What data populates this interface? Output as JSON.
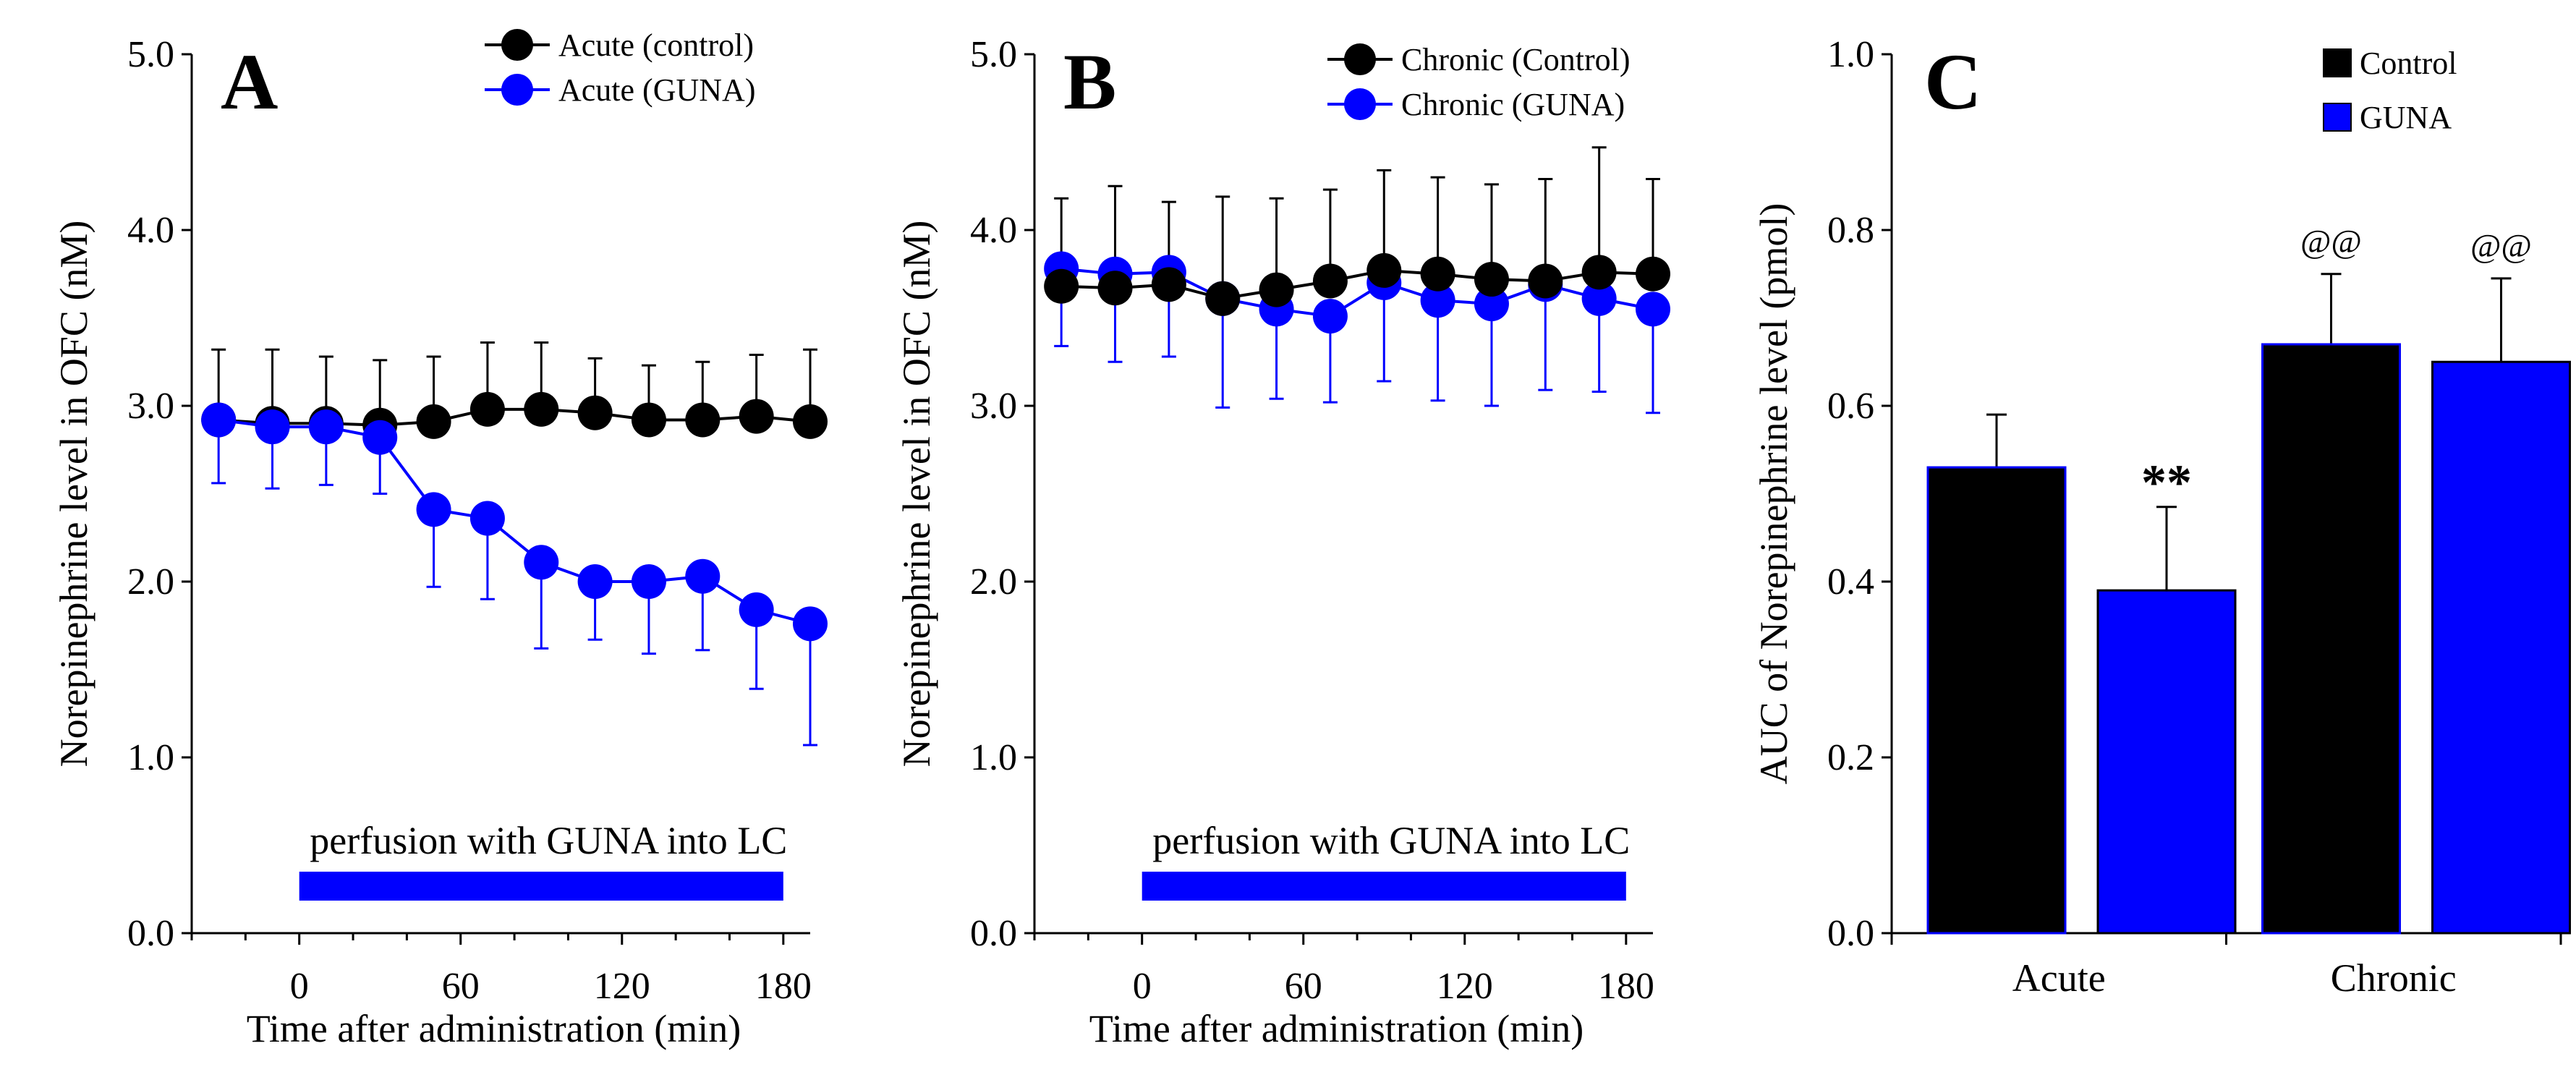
{
  "colors": {
    "control": "#000000",
    "guna": "#0000ff"
  },
  "chart_data": [
    {
      "type": "line",
      "panel": "A",
      "xlabel": "Time after administration (min)",
      "ylabel": "Norepinephrine level in OFC (nM)",
      "ylim": [
        0,
        5
      ],
      "xlim": [
        -40,
        190
      ],
      "y_ticks": [
        "0.0",
        "1.0",
        "2.0",
        "3.0",
        "4.0",
        "5.0"
      ],
      "y_tick_values": [
        0,
        1,
        2,
        3,
        4,
        5
      ],
      "x_ticks": [
        "0",
        "60",
        "120",
        "180"
      ],
      "x_tick_values": [
        0,
        60,
        120,
        180
      ],
      "x": [
        -30,
        -10,
        10,
        30,
        50,
        70,
        90,
        110,
        130,
        150,
        170,
        190
      ],
      "series": [
        {
          "name": "Acute (control)",
          "color": "#000000",
          "values": [
            2.92,
            2.9,
            2.9,
            2.89,
            2.91,
            2.98,
            2.98,
            2.96,
            2.92,
            2.92,
            2.94,
            2.91
          ],
          "errors": [
            0.4,
            0.42,
            0.38,
            0.37,
            0.37,
            0.38,
            0.38,
            0.31,
            0.31,
            0.33,
            0.35,
            0.41
          ]
        },
        {
          "name": "Acute (GUNA)",
          "color": "#0000ff",
          "values": [
            2.92,
            2.88,
            2.88,
            2.82,
            2.41,
            2.36,
            2.11,
            2.0,
            2.0,
            2.03,
            1.84,
            1.76
          ],
          "errors": [
            0.36,
            0.35,
            0.33,
            0.32,
            0.44,
            0.46,
            0.49,
            0.33,
            0.41,
            0.42,
            0.45,
            0.69
          ]
        }
      ],
      "perfusion_label": "perfusion with GUNA into LC",
      "perfusion_range": [
        0,
        180
      ]
    },
    {
      "type": "line",
      "panel": "B",
      "xlabel": "Time after administration (min)",
      "ylabel": "Norepinephrine level in OFC (nM)",
      "ylim": [
        0,
        5
      ],
      "xlim": [
        -40,
        190
      ],
      "y_ticks": [
        "0.0",
        "1.0",
        "2.0",
        "3.0",
        "4.0",
        "5.0"
      ],
      "y_tick_values": [
        0,
        1,
        2,
        3,
        4,
        5
      ],
      "x_ticks": [
        "0",
        "60",
        "120",
        "180"
      ],
      "x_tick_values": [
        0,
        60,
        120,
        180
      ],
      "x": [
        -30,
        -10,
        10,
        30,
        50,
        70,
        90,
        110,
        130,
        150,
        170,
        190
      ],
      "series": [
        {
          "name": "Chronic (Control)",
          "color": "#000000",
          "values": [
            3.68,
            3.67,
            3.69,
            3.61,
            3.66,
            3.71,
            3.77,
            3.75,
            3.72,
            3.71,
            3.76,
            3.75
          ],
          "errors": [
            0.5,
            0.58,
            0.47,
            0.58,
            0.52,
            0.52,
            0.57,
            0.55,
            0.54,
            0.58,
            0.71,
            0.54
          ]
        },
        {
          "name": "Chronic (GUNA)",
          "color": "#0000ff",
          "values": [
            3.78,
            3.75,
            3.76,
            3.61,
            3.55,
            3.51,
            3.7,
            3.6,
            3.58,
            3.69,
            3.61,
            3.55
          ],
          "errors": [
            0.44,
            0.5,
            0.48,
            0.62,
            0.51,
            0.49,
            0.56,
            0.57,
            0.58,
            0.6,
            0.53,
            0.59
          ]
        }
      ],
      "perfusion_label": "perfusion with GUNA into LC",
      "perfusion_range": [
        0,
        180
      ]
    },
    {
      "type": "bar",
      "panel": "C",
      "xlabel": "",
      "ylabel": "AUC of Norepinephrine level (pmol)",
      "ylim": [
        0,
        1
      ],
      "y_ticks": [
        "0.0",
        "0.2",
        "0.4",
        "0.6",
        "0.8",
        "1.0"
      ],
      "y_tick_values": [
        0,
        0.2,
        0.4,
        0.6,
        0.8,
        1.0
      ],
      "categories": [
        "Acute",
        "Chronic"
      ],
      "series": [
        {
          "name": "Control",
          "color": "#000000",
          "values": [
            0.53,
            0.67
          ],
          "errors": [
            0.06,
            0.08
          ]
        },
        {
          "name": "GUNA",
          "color": "#0000ff",
          "values": [
            0.39,
            0.65
          ],
          "errors": [
            0.095,
            0.095
          ]
        }
      ],
      "annotations": [
        {
          "text": "**",
          "category": 0,
          "series": 1
        },
        {
          "text": "@@",
          "category": 1,
          "series": 0
        },
        {
          "text": "@@",
          "category": 1,
          "series": 1
        }
      ]
    }
  ]
}
